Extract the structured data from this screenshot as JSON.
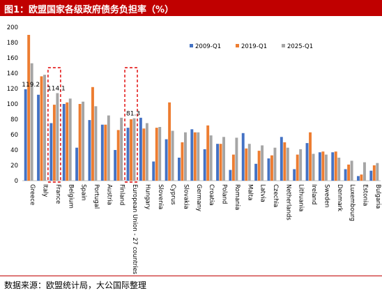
{
  "header": {
    "title": "图1：欧盟国家各级政府债务负担率（%）"
  },
  "footer": {
    "source": "数据来源：欧盟统计局，大公国际整理"
  },
  "colors": {
    "title_bg": "#c00000",
    "s2009": "#4472c4",
    "s2019": "#ed7d31",
    "s2025": "#a5a5a5",
    "highlight": "#e00000",
    "grid": "#d9d9d9"
  },
  "chart_data": {
    "type": "bar",
    "categories": [
      "Greece",
      "Italy",
      "France",
      "Belgium",
      "Spain",
      "Portugal",
      "Austria",
      "Finland",
      "European Union - 27 countries",
      "Hungary",
      "Slovenia",
      "Cyprus",
      "Slovakia",
      "Germany",
      "Croatia",
      "Poland",
      "Romania",
      "Malta",
      "Latvia",
      "Czechia",
      "Netherlands",
      "Lithuania",
      "Ireland",
      "Sweden",
      "Denmark",
      "Luxembourg",
      "Estonia",
      "Bulgaria"
    ],
    "series": [
      {
        "name": "2009-Q1",
        "color": "#4472c4",
        "values": [
          119.2,
          112,
          75,
          100,
          43,
          79,
          73,
          40,
          69,
          82,
          25,
          54,
          30,
          67,
          41,
          48,
          14,
          62,
          22,
          29,
          57,
          15,
          49,
          37,
          37,
          15,
          6,
          13
        ]
      },
      {
        "name": "2019-Q1",
        "color": "#ed7d31",
        "values": [
          190,
          136,
          99,
          102,
          100,
          122,
          73,
          66,
          80,
          68,
          69,
          102,
          50,
          63,
          72,
          48,
          34,
          42,
          39,
          33,
          50,
          34,
          63,
          38,
          38,
          21,
          8,
          20
        ]
      },
      {
        "name": "2025-Q1",
        "color": "#a5a5a5",
        "values": [
          153,
          138,
          114.1,
          107,
          103,
          97,
          85,
          82,
          81.3,
          75,
          70,
          65,
          63,
          63,
          59,
          57,
          56,
          48,
          46,
          43,
          43,
          41,
          35,
          34,
          30,
          26,
          24,
          23
        ]
      }
    ],
    "data_labels": [
      {
        "text": "119.2",
        "category": "Greece",
        "value": 119.2
      },
      {
        "text": "114.1",
        "category": "France",
        "value": 114.1
      },
      {
        "text": "81.3",
        "category": "European Union - 27 countries",
        "value": 81.3
      }
    ],
    "highlighted_categories": [
      "France",
      "European Union - 27 countries"
    ],
    "yticks": [
      "200",
      "180",
      "160",
      "140",
      "120",
      "100",
      "80",
      "60",
      "40",
      "20",
      "0"
    ],
    "ylim": [
      0,
      200
    ],
    "legend_position": "top-right",
    "grid": false,
    "xlabel": "",
    "ylabel": ""
  }
}
